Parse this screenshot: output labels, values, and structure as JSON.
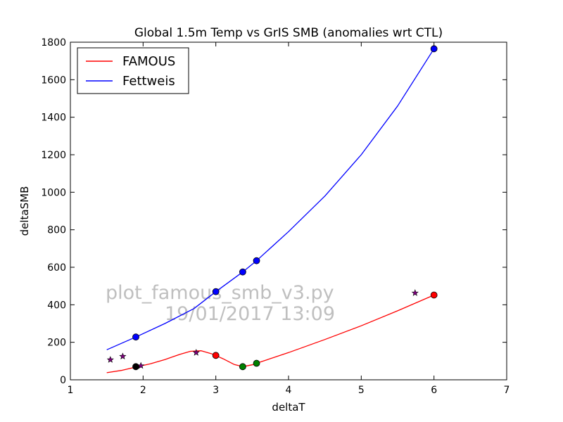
{
  "chart_data": {
    "type": "line",
    "title": "Global 1.5m Temp vs GrIS SMB (anomalies wrt CTL)",
    "xlabel": "deltaT",
    "ylabel": "deltaSMB",
    "xlim": [
      1,
      7
    ],
    "ylim": [
      0,
      1800
    ],
    "x_ticks": [
      1,
      2,
      3,
      4,
      5,
      6,
      7
    ],
    "y_ticks": [
      0,
      200,
      400,
      600,
      800,
      1000,
      1200,
      1400,
      1600,
      1800
    ],
    "grid": false,
    "legend_placement": "top-left",
    "series": [
      {
        "name": "FAMOUS",
        "color": "#ff0000",
        "curve": [
          [
            1.5,
            38
          ],
          [
            1.7,
            50
          ],
          [
            1.9,
            68
          ],
          [
            2.1,
            85
          ],
          [
            2.3,
            108
          ],
          [
            2.5,
            135
          ],
          [
            2.65,
            152
          ],
          [
            2.8,
            155
          ],
          [
            2.95,
            138
          ],
          [
            3.1,
            112
          ],
          [
            3.25,
            82
          ],
          [
            3.37,
            70
          ],
          [
            3.5,
            80
          ],
          [
            3.56,
            88
          ],
          [
            4.0,
            145
          ],
          [
            4.5,
            215
          ],
          [
            5.0,
            288
          ],
          [
            5.5,
            368
          ],
          [
            6.0,
            452
          ]
        ],
        "markers": [
          {
            "x": 1.9,
            "y": 70,
            "color": "#000000"
          },
          {
            "x": 3.0,
            "y": 130,
            "color": "#ff0000"
          },
          {
            "x": 3.37,
            "y": 70,
            "color": "#008000"
          },
          {
            "x": 3.56,
            "y": 88,
            "color": "#008000"
          },
          {
            "x": 6.0,
            "y": 452,
            "color": "#ff0000"
          }
        ]
      },
      {
        "name": "Fettweis",
        "color": "#0000ff",
        "curve": [
          [
            1.5,
            160
          ],
          [
            1.9,
            228
          ],
          [
            2.3,
            300
          ],
          [
            2.7,
            380
          ],
          [
            3.0,
            470
          ],
          [
            3.37,
            575
          ],
          [
            3.56,
            635
          ],
          [
            4.0,
            790
          ],
          [
            4.5,
            980
          ],
          [
            5.0,
            1200
          ],
          [
            5.5,
            1460
          ],
          [
            6.0,
            1765
          ]
        ],
        "markers": [
          {
            "x": 1.9,
            "y": 228,
            "color": "#0000ff"
          },
          {
            "x": 3.0,
            "y": 470,
            "color": "#0000ff"
          },
          {
            "x": 3.37,
            "y": 575,
            "color": "#0000ff"
          },
          {
            "x": 3.56,
            "y": 635,
            "color": "#0000ff"
          },
          {
            "x": 6.0,
            "y": 1765,
            "color": "#0000ff"
          }
        ]
      }
    ],
    "stars": {
      "color": "#800080",
      "points": [
        {
          "x": 1.55,
          "y": 107
        },
        {
          "x": 1.72,
          "y": 125
        },
        {
          "x": 1.97,
          "y": 75
        },
        {
          "x": 2.73,
          "y": 145
        },
        {
          "x": 5.74,
          "y": 463
        }
      ]
    },
    "watermark": {
      "line1": "plot_famous_smb_v3.py",
      "line2": "19/01/2017 13:09"
    }
  }
}
